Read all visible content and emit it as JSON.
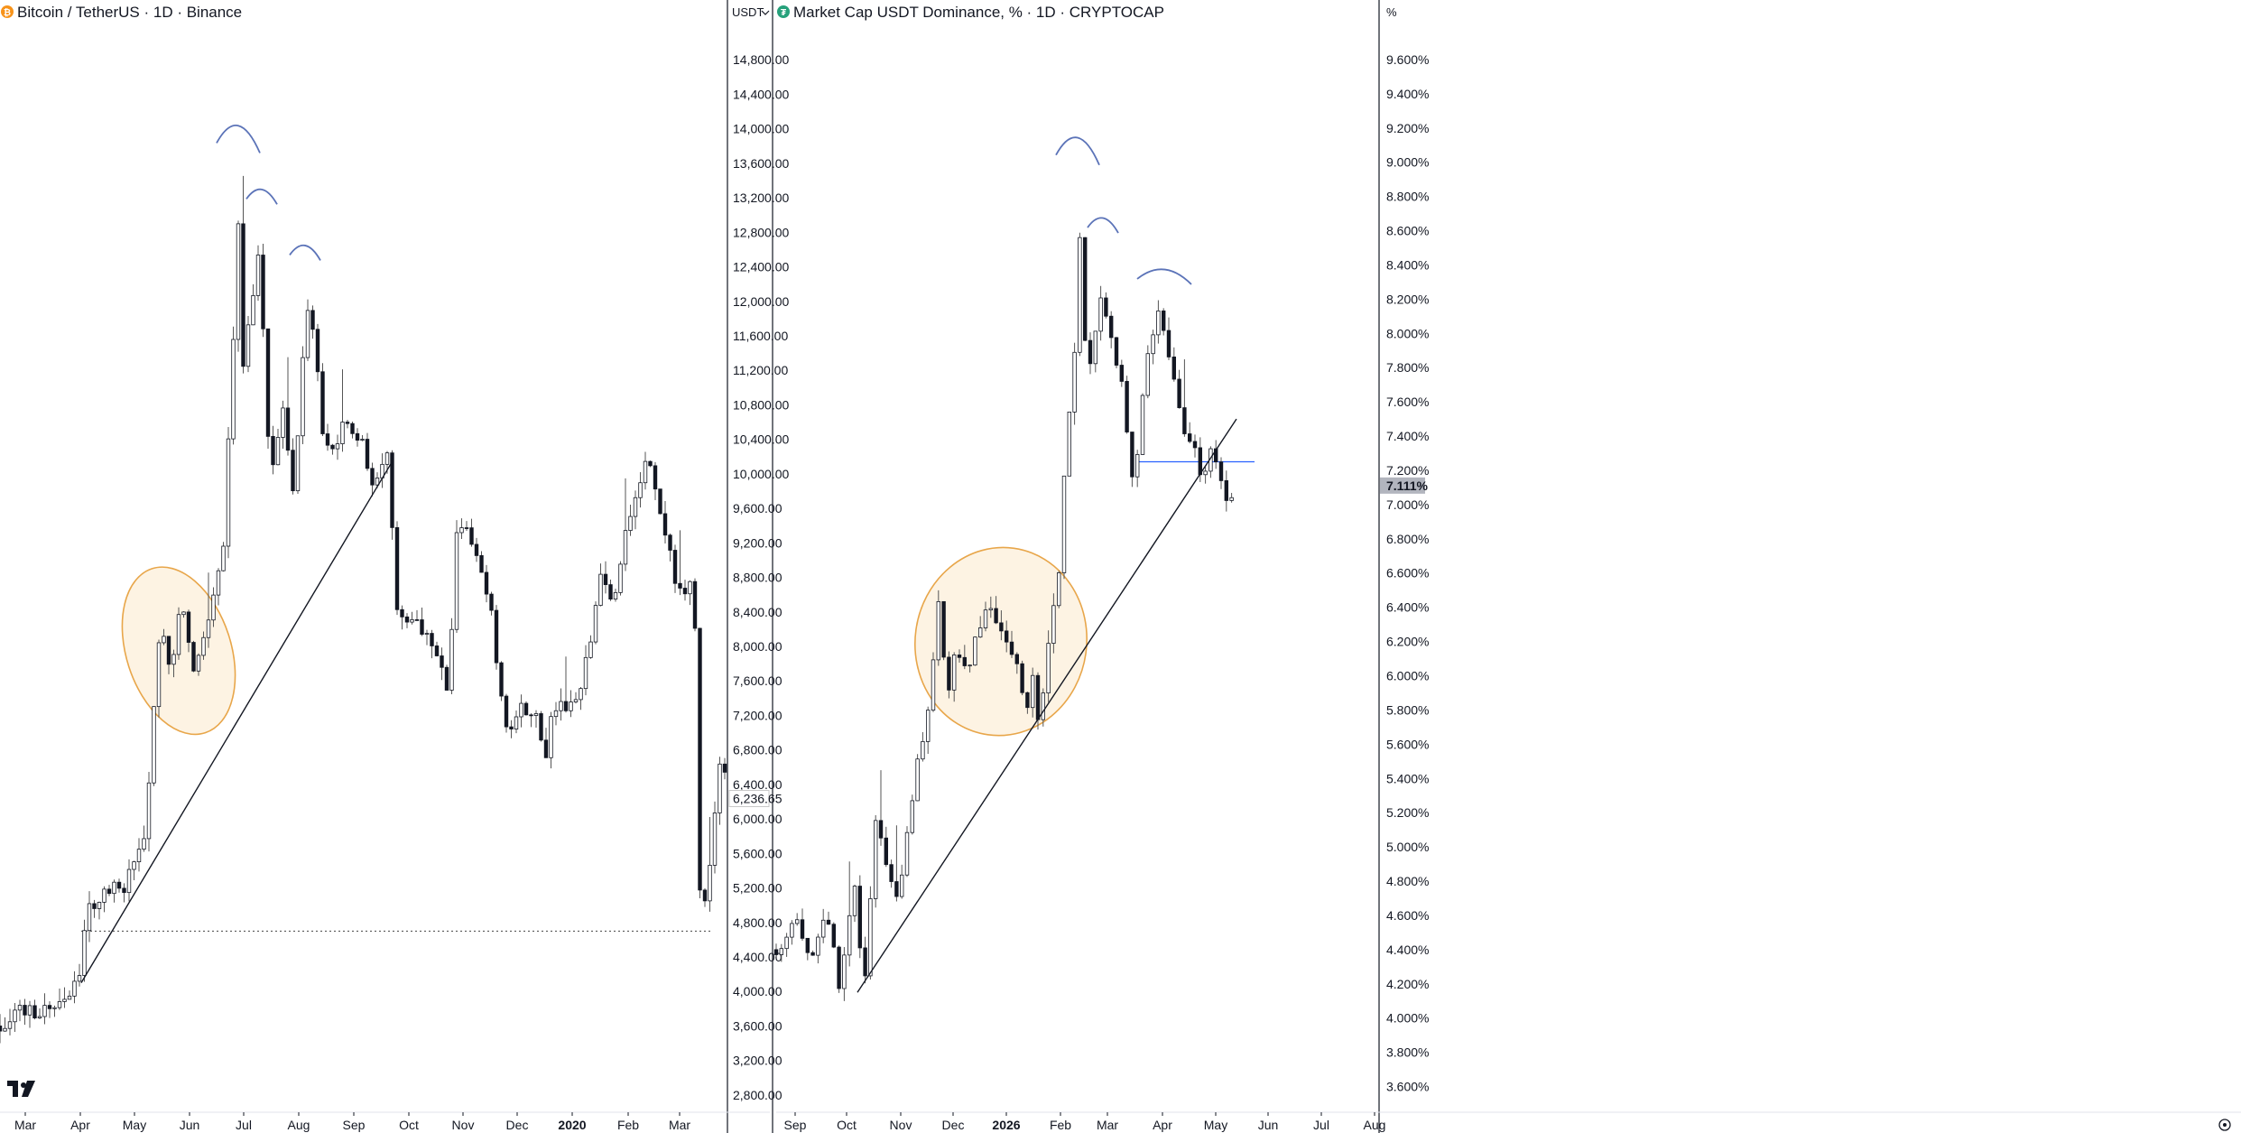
{
  "chart_data": [
    {
      "type": "candlestick",
      "title": "Bitcoin / TetherUS · 1D · Binance",
      "currency": "USDT",
      "icon": "bitcoin-icon",
      "icon_color": "#f7931a",
      "ylim": [
        2600,
        15200
      ],
      "y_ticks": [
        2800,
        3200,
        3600,
        4000,
        4400,
        4800,
        5200,
        5600,
        6000,
        6400,
        6800,
        7200,
        7600,
        8000,
        8400,
        8800,
        9200,
        9600,
        10000,
        10400,
        10800,
        11200,
        11600,
        12000,
        12400,
        12800,
        13200,
        13600,
        14000,
        14400,
        14800
      ],
      "y_tick_labels": [
        "2,800.00",
        "3,200.00",
        "3,600.00",
        "4,000.00",
        "4,400.00",
        "4,800.00",
        "5,200.00",
        "5,600.00",
        "6,000.00",
        "6,400.00",
        "6,800.00",
        "7,200.00",
        "7,600.00",
        "8,000.00",
        "8,400.00",
        "8,800.00",
        "9,200.00",
        "9,600.00",
        "10,000.00",
        "10,400.00",
        "10,800.00",
        "11,200.00",
        "11,600.00",
        "12,000.00",
        "12,400.00",
        "12,800.00",
        "13,200.00",
        "13,600.00",
        "14,000.00",
        "14,400.00",
        "14,800.00"
      ],
      "x_ticks": [
        "Mar",
        "Apr",
        "May",
        "Jun",
        "Jul",
        "Aug",
        "Sep",
        "Oct",
        "Nov",
        "Dec",
        "2020",
        "Feb",
        "Mar"
      ],
      "last_price": 6236.65,
      "last_price_label": "6,236.65",
      "path": [
        [
          0,
          3600
        ],
        [
          15,
          3800
        ],
        [
          30,
          3750
        ],
        [
          60,
          3850
        ],
        [
          90,
          4150
        ],
        [
          95,
          4900
        ],
        [
          110,
          5100
        ],
        [
          140,
          5250
        ],
        [
          160,
          5800
        ],
        [
          172,
          7400
        ],
        [
          178,
          8200
        ],
        [
          190,
          7800
        ],
        [
          200,
          8600
        ],
        [
          215,
          7700
        ],
        [
          232,
          8300
        ],
        [
          248,
          9300
        ],
        [
          258,
          11500
        ],
        [
          263,
          13200
        ],
        [
          268,
          11200
        ],
        [
          275,
          11800
        ],
        [
          287,
          12600
        ],
        [
          300,
          9900
        ],
        [
          312,
          10800
        ],
        [
          326,
          9600
        ],
        [
          338,
          11800
        ],
        [
          345,
          11900
        ],
        [
          360,
          10200
        ],
        [
          380,
          10500
        ],
        [
          398,
          10500
        ],
        [
          410,
          9900
        ],
        [
          430,
          10150
        ],
        [
          440,
          8500
        ],
        [
          460,
          8300
        ],
        [
          480,
          8100
        ],
        [
          498,
          7400
        ],
        [
          505,
          9400
        ],
        [
          520,
          9350
        ],
        [
          545,
          8300
        ],
        [
          560,
          7000
        ],
        [
          575,
          7300
        ],
        [
          590,
          7300
        ],
        [
          605,
          6800
        ],
        [
          615,
          7300
        ],
        [
          637,
          7250
        ],
        [
          652,
          7900
        ],
        [
          665,
          8800
        ],
        [
          680,
          8500
        ],
        [
          695,
          9500
        ],
        [
          712,
          10000
        ],
        [
          718,
          10200
        ],
        [
          730,
          9600
        ],
        [
          745,
          8900
        ],
        [
          755,
          8600
        ],
        [
          765,
          8700
        ],
        [
          770,
          8100
        ],
        [
          776,
          4900
        ],
        [
          783,
          5100
        ],
        [
          790,
          6000
        ],
        [
          800,
          6700
        ],
        [
          806,
          6400
        ]
      ],
      "trendline": {
        "from": [
          90,
          4100
        ],
        "to": [
          435,
          10150
        ]
      },
      "support_level": 4700,
      "highlight_ellipse": {
        "x_center": 198,
        "y_center": 7950,
        "x_radius": 58,
        "y_radius": 1000
      },
      "peak_arcs": [
        [
          264,
          13950
        ],
        [
          290,
          13250
        ],
        [
          338,
          12600
        ]
      ]
    },
    {
      "type": "candlestick",
      "title": "Market Cap USDT Dominance, % · 1D · CRYPTOCAP",
      "currency": "%",
      "icon": "tether-icon",
      "icon_color": "#26a17b",
      "ylim": [
        3.45,
        9.8
      ],
      "y_ticks": [
        3.6,
        3.8,
        4.0,
        4.2,
        4.4,
        4.6,
        4.8,
        5.0,
        5.2,
        5.4,
        5.6,
        5.8,
        6.0,
        6.2,
        6.4,
        6.6,
        6.8,
        7.0,
        7.2,
        7.4,
        7.6,
        7.8,
        8.0,
        8.2,
        8.4,
        8.6,
        8.8,
        9.0,
        9.2,
        9.4,
        9.6
      ],
      "y_tick_labels": [
        "3.600%",
        "3.800%",
        "4.000%",
        "4.200%",
        "4.400%",
        "4.600%",
        "4.800%",
        "5.000%",
        "5.200%",
        "5.400%",
        "5.600%",
        "5.800%",
        "6.000%",
        "6.200%",
        "6.400%",
        "6.600%",
        "6.800%",
        "7.000%",
        "7.200%",
        "7.400%",
        "7.600%",
        "7.800%",
        "8.000%",
        "8.200%",
        "8.400%",
        "8.600%",
        "8.800%",
        "9.000%",
        "9.200%",
        "9.400%",
        "9.600%"
      ],
      "x_ticks": [
        "Sep",
        "Oct",
        "Nov",
        "Dec",
        "2026",
        "Feb",
        "Mar",
        "Apr",
        "May",
        "Jun",
        "Jul",
        "Aug"
      ],
      "last_price": 7.111,
      "last_price_label": "7.111%",
      "path": [
        [
          0,
          4.4
        ],
        [
          20,
          4.6
        ],
        [
          40,
          4.3
        ],
        [
          55,
          4.6
        ],
        [
          70,
          4.2
        ],
        [
          80,
          4.5
        ],
        [
          88,
          4.8
        ],
        [
          95,
          4.2
        ],
        [
          100,
          4.3
        ],
        [
          110,
          5.1
        ],
        [
          125,
          4.9
        ],
        [
          135,
          4.7
        ],
        [
          150,
          5.3
        ],
        [
          170,
          5.8
        ],
        [
          180,
          6.4
        ],
        [
          190,
          5.9
        ],
        [
          200,
          6.2
        ],
        [
          210,
          6.0
        ],
        [
          230,
          6.4
        ],
        [
          245,
          6.3
        ],
        [
          260,
          6.2
        ],
        [
          275,
          5.8
        ],
        [
          285,
          6.0
        ],
        [
          290,
          5.7
        ],
        [
          305,
          6.3
        ],
        [
          312,
          6.5
        ],
        [
          320,
          7.2
        ],
        [
          330,
          7.8
        ],
        [
          336,
          8.6
        ],
        [
          345,
          7.7
        ],
        [
          360,
          8.2
        ],
        [
          375,
          7.9
        ],
        [
          385,
          7.6
        ],
        [
          395,
          7.1
        ],
        [
          415,
          8.0
        ],
        [
          425,
          8.1
        ],
        [
          440,
          7.7
        ],
        [
          455,
          7.4
        ],
        [
          470,
          7.2
        ],
        [
          485,
          7.3
        ],
        [
          500,
          7.0
        ],
        [
          510,
          7.1
        ]
      ],
      "trendline": {
        "from": [
          90,
          4.15
        ],
        "to": [
          510,
          7.5
        ]
      },
      "support_level": 7.25,
      "highlight_ellipse": {
        "x_center": 249,
        "y_center": 6.2,
        "x_radius": 95,
        "y_radius": 0.55
      },
      "peak_arcs": [
        [
          334,
          9.1
        ],
        [
          362,
          8.65
        ],
        [
          430,
          8.35
        ]
      ]
    }
  ]
}
